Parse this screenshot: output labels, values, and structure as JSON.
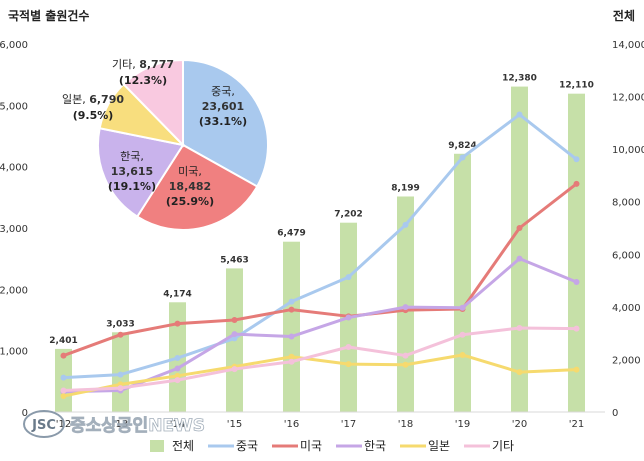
{
  "chart_data": [
    {
      "type": "bar",
      "title": "",
      "ylabel_left": "국적별 출원건수",
      "ylabel_right": "전체",
      "categories": [
        "'12",
        "'13",
        "'14",
        "'15",
        "'16",
        "'17",
        "'18",
        "'19",
        "'20",
        "'21"
      ],
      "tick_labels_visible": [
        "'12",
        "'13",
        "'14",
        "'15",
        "'16",
        "'17",
        "'18",
        "'19",
        "'20",
        "'21"
      ],
      "left_axis": {
        "range": [
          0,
          6000
        ],
        "ticks": [
          "0",
          "1,000",
          "2,000",
          "3,000",
          "4,000",
          "5,000",
          "6,000"
        ]
      },
      "right_axis": {
        "range": [
          0,
          14000
        ],
        "ticks": [
          "0",
          "2,000",
          "4,000",
          "6,000",
          "8,000",
          "10,000",
          "12,000",
          "14,000"
        ]
      },
      "bar_series": {
        "name": "전체",
        "axis": "right",
        "values": [
          2401,
          3033,
          4174,
          5463,
          6479,
          7202,
          8199,
          9824,
          12380,
          12110
        ],
        "labels": [
          "2,401",
          "3,033",
          "4,174",
          "5,463",
          "6,479",
          "7,202",
          "8,199",
          "9,824",
          "12,380",
          "12,110"
        ],
        "color": "#c6e0a8"
      },
      "line_series": [
        {
          "name": "중국",
          "axis": "left",
          "color": "#a9c9ee",
          "values": [
            560,
            610,
            880,
            1200,
            1800,
            2200,
            3050,
            4150,
            4850,
            4120
          ]
        },
        {
          "name": "미국",
          "axis": "left",
          "color": "#e57b78",
          "values": [
            920,
            1260,
            1440,
            1500,
            1670,
            1560,
            1660,
            1680,
            3000,
            3720
          ]
        },
        {
          "name": "한국",
          "axis": "left",
          "color": "#c5a6e6",
          "values": [
            330,
            350,
            710,
            1270,
            1230,
            1540,
            1710,
            1700,
            2500,
            2120
          ]
        },
        {
          "name": "일본",
          "axis": "left",
          "color": "#f6da6e",
          "values": [
            260,
            450,
            590,
            740,
            900,
            780,
            770,
            930,
            650,
            690
          ]
        },
        {
          "name": "기타",
          "axis": "left",
          "color": "#f4c1da",
          "values": [
            350,
            390,
            520,
            700,
            820,
            1060,
            920,
            1260,
            1370,
            1360
          ]
        }
      ],
      "legend": {
        "position": "bottom",
        "entries": [
          {
            "label": "전체",
            "color": "#c6e0a8",
            "kind": "bar"
          },
          {
            "label": "중국",
            "color": "#a9c9ee",
            "kind": "line"
          },
          {
            "label": "미국",
            "color": "#e57b78",
            "kind": "line"
          },
          {
            "label": "한국",
            "color": "#c5a6e6",
            "kind": "line"
          },
          {
            "label": "일본",
            "color": "#f6da6e",
            "kind": "line"
          },
          {
            "label": "기타",
            "color": "#f4c1da",
            "kind": "line"
          }
        ]
      },
      "grid": false
    },
    {
      "type": "pie",
      "title": "",
      "slices": [
        {
          "name": "중국",
          "value": 23601,
          "value_label": "23,601",
          "pct_label": "(33.1%)",
          "color": "#a9c9ee"
        },
        {
          "name": "미국",
          "value": 18482,
          "value_label": "18,482",
          "pct_label": "(25.9%)",
          "color": "#f08080"
        },
        {
          "name": "한국",
          "value": 13615,
          "value_label": "13,615",
          "pct_label": "(19.1%)",
          "color": "#c9b3ec"
        },
        {
          "name": "일본",
          "value": 6790,
          "value_label": "6,790",
          "pct_label": "(9.5%)",
          "color": "#f8de7e"
        },
        {
          "name": "기타",
          "value": 8777,
          "value_label": "8,777",
          "pct_label": "(12.3%)",
          "color": "#f9c9e0"
        }
      ]
    }
  ],
  "watermark": {
    "text": "중소상공인NEWS",
    "logo": "JSC"
  }
}
